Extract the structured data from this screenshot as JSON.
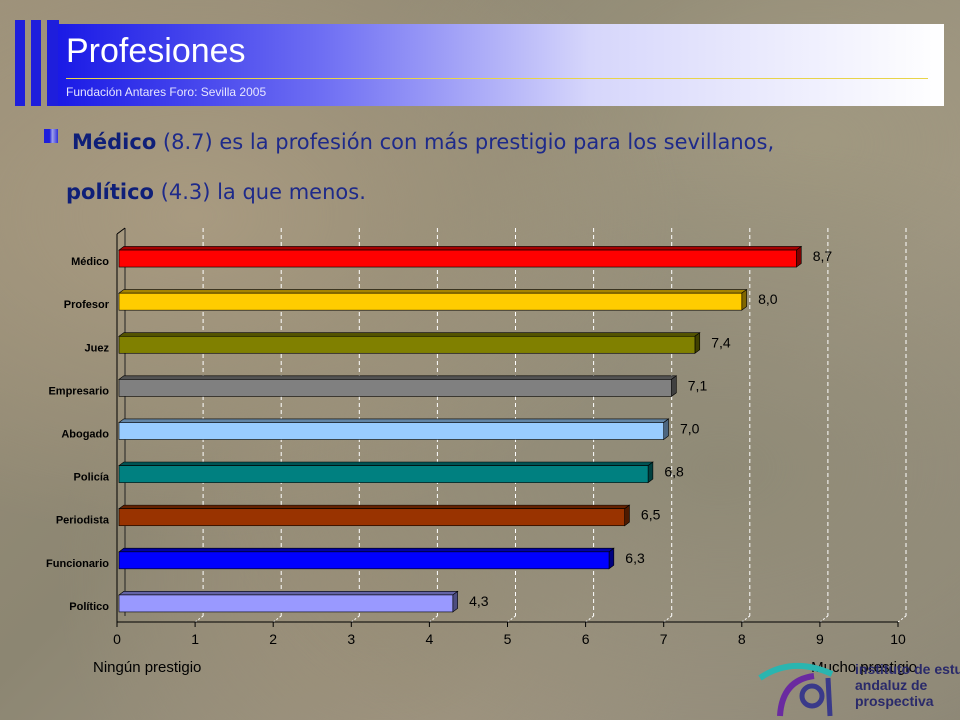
{
  "header": {
    "title": "Profesiones",
    "subtitle": "Fundación Antares Foro: Sevilla 2005",
    "accent": "#1e1edc"
  },
  "statement": {
    "line1_bold": "Médico",
    "line1_rest": " (8.7) es la profesión con más prestigio para los sevillanos,",
    "line2_bold": "político",
    "line2_rest": " (4.3) la que menos."
  },
  "chart_data": {
    "type": "bar",
    "orientation": "horizontal",
    "categories": [
      "Médico",
      "Profesor",
      "Juez",
      "Empresario",
      "Abogado",
      "Policía",
      "Periodista",
      "Funcionario",
      "Político"
    ],
    "values": [
      8.7,
      8.0,
      7.4,
      7.1,
      7.0,
      6.8,
      6.5,
      6.3,
      4.3
    ],
    "value_labels": [
      "8,7",
      "8,0",
      "7,4",
      "7,1",
      "7,0",
      "6,8",
      "6,5",
      "6,3",
      "4,3"
    ],
    "colors": [
      "#ff0000",
      "#ffcc00",
      "#808000",
      "#808080",
      "#99ccff",
      "#008080",
      "#993300",
      "#0000ff",
      "#9999ff"
    ],
    "xlim": [
      0,
      10
    ],
    "xticks": [
      "0",
      "1",
      "2",
      "3",
      "4",
      "5",
      "6",
      "7",
      "8",
      "9",
      "10"
    ],
    "xlabel_left": "Ningún prestigio",
    "xlabel_right": "Mucho prestigio",
    "grid": "vertical dashed"
  },
  "logo": {
    "line1": "instituto de estudios",
    "line2": "andaluz de",
    "line3": "prospectiva"
  }
}
